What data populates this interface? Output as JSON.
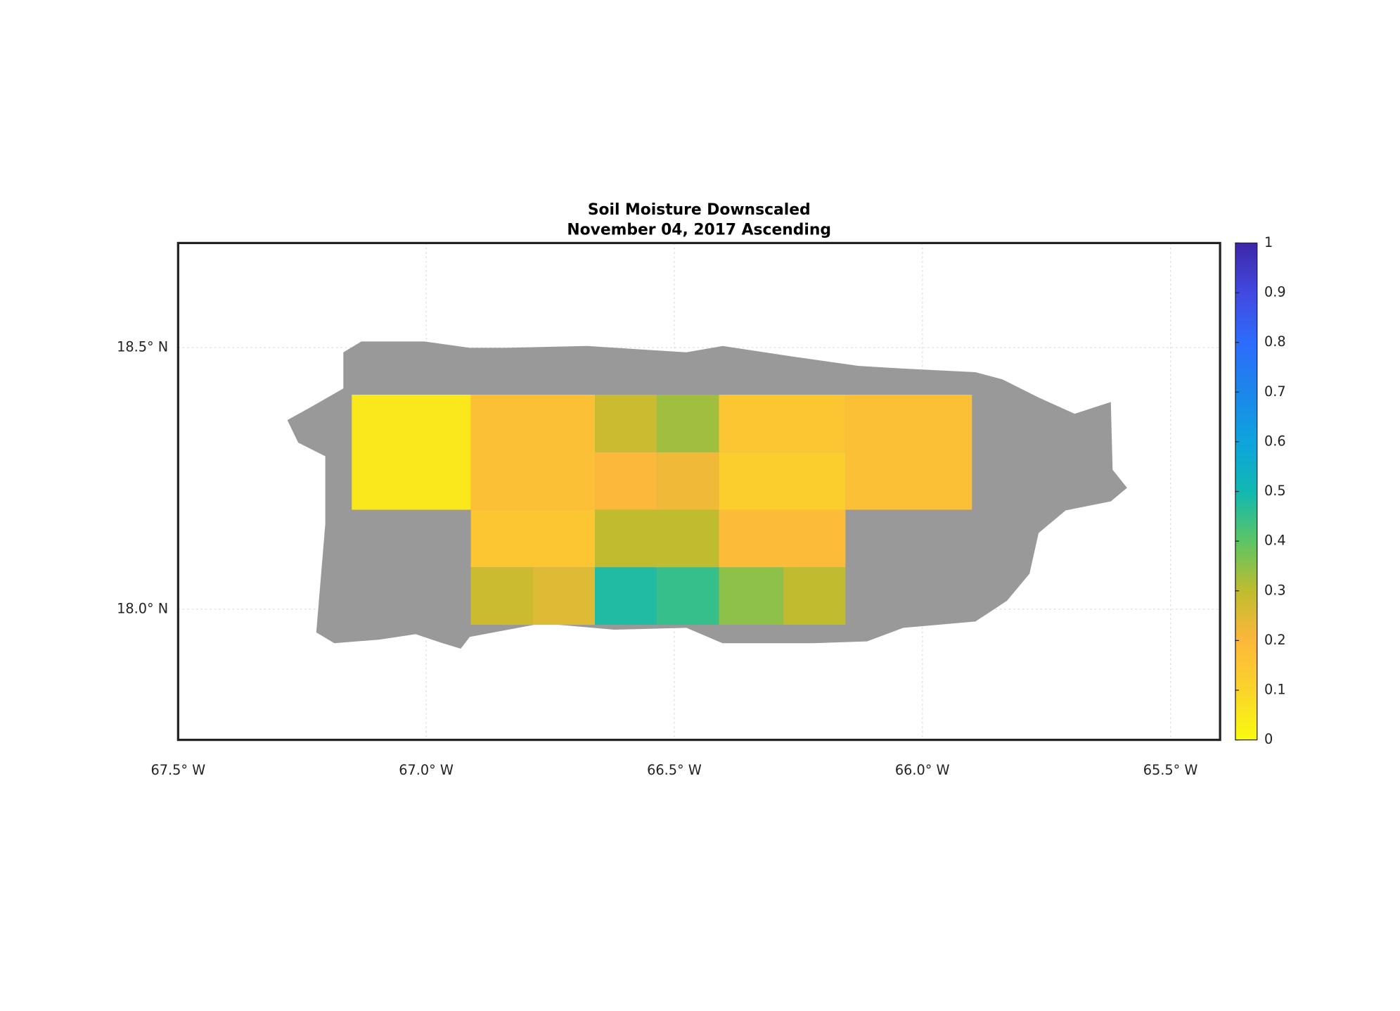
{
  "chart_data": {
    "type": "map",
    "title": "Soil Moisture Downscaled",
    "subtitle": "November 04, 2017 Ascending",
    "xlim": [
      -67.5,
      -65.4
    ],
    "ylim": [
      17.75,
      18.7
    ],
    "xticks": [
      {
        "value": -67.5,
        "label": "67.5° W"
      },
      {
        "value": -67.0,
        "label": "67.0° W"
      },
      {
        "value": -66.5,
        "label": "66.5° W"
      },
      {
        "value": -66.0,
        "label": "66.0° W"
      },
      {
        "value": -65.5,
        "label": "65.5° W"
      }
    ],
    "yticks": [
      {
        "value": 18.0,
        "label": "18.0° N"
      },
      {
        "value": 18.5,
        "label": "18.5° N"
      }
    ],
    "grid": true,
    "colormap": "parula",
    "clim": [
      0,
      1
    ],
    "cticks": [
      0,
      0.1,
      0.2,
      0.3,
      0.4,
      0.5,
      0.6,
      0.7,
      0.8,
      0.9,
      1
    ],
    "cells": [
      {
        "lon": [
          -67.15,
          -66.91
        ],
        "lat": [
          18.19,
          18.41
        ],
        "value": 0.05
      },
      {
        "lon": [
          -66.91,
          -66.66
        ],
        "lat": [
          18.19,
          18.41
        ],
        "value": 0.17
      },
      {
        "lon": [
          -66.66,
          -66.535
        ],
        "lat": [
          18.3,
          18.41
        ],
        "value": 0.28
      },
      {
        "lon": [
          -66.535,
          -66.41
        ],
        "lat": [
          18.3,
          18.41
        ],
        "value": 0.33
      },
      {
        "lon": [
          -66.66,
          -66.535
        ],
        "lat": [
          18.19,
          18.3
        ],
        "value": 0.2
      },
      {
        "lon": [
          -66.535,
          -66.41
        ],
        "lat": [
          18.19,
          18.3
        ],
        "value": 0.22
      },
      {
        "lon": [
          -66.41,
          -66.155
        ],
        "lat": [
          18.3,
          18.41
        ],
        "value": 0.15
      },
      {
        "lon": [
          -66.41,
          -66.155
        ],
        "lat": [
          18.19,
          18.3
        ],
        "value": 0.12
      },
      {
        "lon": [
          -66.155,
          -65.9
        ],
        "lat": [
          18.19,
          18.41
        ],
        "value": 0.17
      },
      {
        "lon": [
          -66.91,
          -66.66
        ],
        "lat": [
          18.08,
          18.19
        ],
        "value": 0.15
      },
      {
        "lon": [
          -66.91,
          -66.785
        ],
        "lat": [
          17.97,
          18.08
        ],
        "value": 0.28
      },
      {
        "lon": [
          -66.785,
          -66.66
        ],
        "lat": [
          17.97,
          18.08
        ],
        "value": 0.25
      },
      {
        "lon": [
          -66.66,
          -66.41
        ],
        "lat": [
          18.08,
          18.19
        ],
        "value": 0.3
      },
      {
        "lon": [
          -66.66,
          -66.535
        ],
        "lat": [
          17.97,
          18.08
        ],
        "value": 0.48
      },
      {
        "lon": [
          -66.535,
          -66.41
        ],
        "lat": [
          17.97,
          18.08
        ],
        "value": 0.45
      },
      {
        "lon": [
          -66.41,
          -66.155
        ],
        "lat": [
          18.08,
          18.19
        ],
        "value": 0.19
      },
      {
        "lon": [
          -66.41,
          -66.28
        ],
        "lat": [
          17.97,
          18.08
        ],
        "value": 0.35
      },
      {
        "lon": [
          -66.28,
          -66.155
        ],
        "lat": [
          17.97,
          18.08
        ],
        "value": 0.3
      }
    ]
  }
}
